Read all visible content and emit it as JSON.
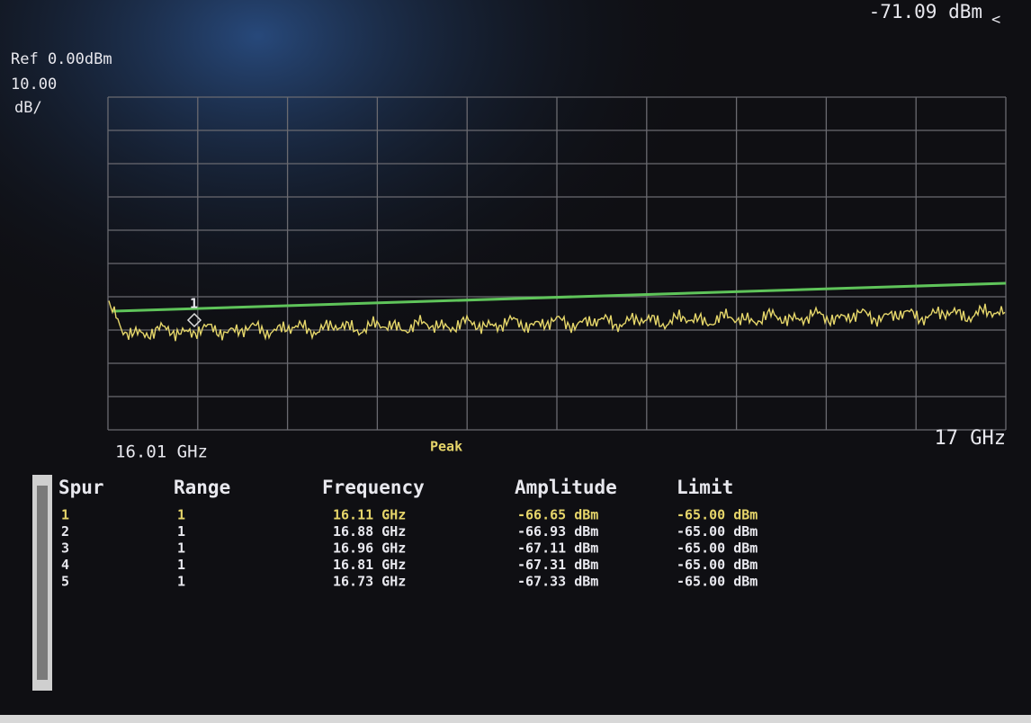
{
  "header": {
    "marker_readout": "-71.09 dBm",
    "ref_level": "Ref 0.00dBm",
    "scale_value": "10.00",
    "scale_unit": "dB/"
  },
  "plot": {
    "start_freq": "16.01 GHz",
    "stop_freq": "17 GHz",
    "detector": "Peak",
    "marker_label": "1"
  },
  "table": {
    "columns": [
      "Spur",
      "Range",
      "Frequency",
      "Amplitude",
      "Limit"
    ],
    "rows": [
      [
        "1",
        "1",
        "16.11 GHz",
        "-66.65 dBm",
        "-65.00 dBm"
      ],
      [
        "2",
        "1",
        "16.88 GHz",
        "-66.93 dBm",
        "-65.00 dBm"
      ],
      [
        "3",
        "1",
        "16.96 GHz",
        "-67.11 dBm",
        "-65.00 dBm"
      ],
      [
        "4",
        "1",
        "16.81 GHz",
        "-67.31 dBm",
        "-65.00 dBm"
      ],
      [
        "5",
        "1",
        "16.73 GHz",
        "-67.33 dBm",
        "-65.00 dBm"
      ]
    ]
  }
}
